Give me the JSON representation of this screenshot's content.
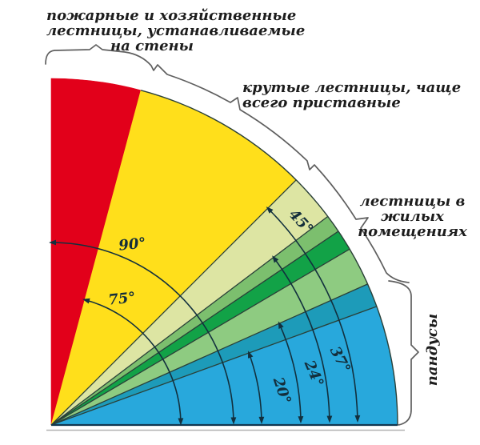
{
  "category_labels": {
    "wall_ladders": {
      "lines": [
        "пожарные и хозяйственные",
        "лестницы, устанавливаемые",
        "на стены"
      ]
    },
    "steep_ladders": {
      "lines": [
        "крутые лестницы, чаще",
        "всего приставные"
      ]
    },
    "residential_ladders": {
      "lines": [
        "лестницы в",
        "жилых",
        "помещениях"
      ]
    },
    "ramps_label": "пандусы"
  },
  "chart_data": {
    "type": "angular-fan",
    "description": "Quarter-circle fan diagram of stair/ramp inclination angles from 0° (horizontal) to 90° (vertical)",
    "angle_unit": "degrees",
    "sectors": [
      {
        "group": "пожарные и хозяйственные лестницы, устанавливаемые на стены",
        "from_deg": 90,
        "to_deg": 75,
        "color": "#e2001a"
      },
      {
        "group": "крутые лестницы, чаще всего приставные",
        "from_deg": 75,
        "to_deg": 45,
        "color": "#ffdf1b"
      },
      {
        "group": "лестницы в жилых помещениях",
        "from_deg": 45,
        "to_deg": 37,
        "color": "#dde5a3"
      },
      {
        "group": "лестницы в жилых помещениях",
        "from_deg": 37,
        "to_deg": 34,
        "color": "#7cbf6e"
      },
      {
        "group": "лестницы в жилых помещениях",
        "from_deg": 34,
        "to_deg": 30.5,
        "color": "#12a247"
      },
      {
        "group": "лестницы в жилых помещениях",
        "from_deg": 30.5,
        "to_deg": 24,
        "color": "#8ecb81"
      },
      {
        "group": "лестницы в жилых помещениях / пандусы",
        "from_deg": 24,
        "to_deg": 20,
        "color": "#1d9bb9"
      },
      {
        "group": "пандусы",
        "from_deg": 20,
        "to_deg": 0,
        "color": "#28a8dc"
      }
    ],
    "angle_markers": [
      {
        "label": "90°",
        "angle_deg": 90
      },
      {
        "label": "75°",
        "angle_deg": 75
      },
      {
        "label": "45°",
        "angle_deg": 45
      },
      {
        "label": "37°",
        "angle_deg": 37
      },
      {
        "label": "24°",
        "angle_deg": 24
      },
      {
        "label": "20°",
        "angle_deg": 20
      }
    ],
    "line_colors": {
      "boundary": "#2a4038",
      "baseline": "#123750",
      "arrow": "#12303e",
      "brace": "#5f5f5f",
      "underline": "#b3b3b3",
      "angle_text": "#142e3b"
    }
  }
}
